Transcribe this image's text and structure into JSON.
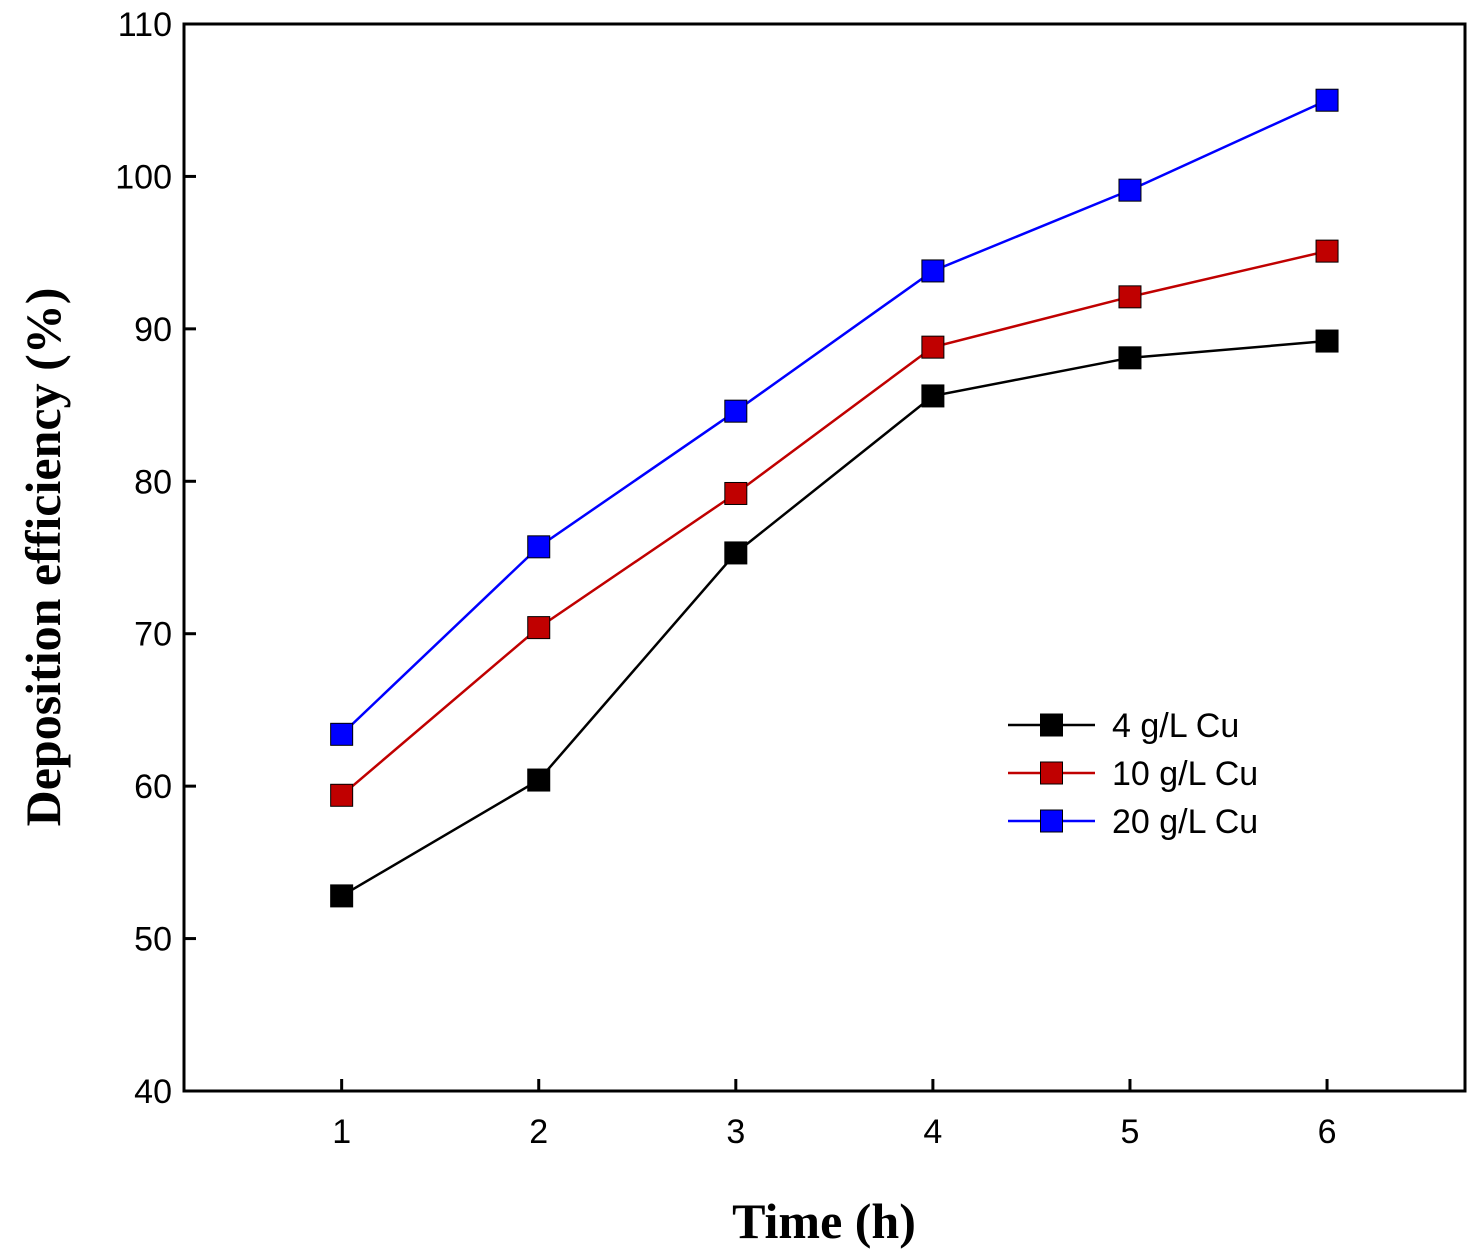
{
  "chart_data": {
    "type": "line",
    "title": "",
    "xlabel": "Time (h)",
    "ylabel": "Deposition efficiency (%)",
    "x": [
      1,
      2,
      3,
      4,
      5,
      6
    ],
    "xlim": [
      0.2,
      6.7
    ],
    "ylim": [
      40,
      110
    ],
    "xticks": [
      1,
      2,
      3,
      4,
      5,
      6
    ],
    "yticks": [
      40,
      50,
      60,
      70,
      80,
      90,
      100,
      110
    ],
    "grid": false,
    "legend_position": "center-right",
    "series": [
      {
        "name": "4 g/L Cu",
        "color": "#000000",
        "marker": "square",
        "values": [
          52.8,
          60.4,
          75.3,
          85.6,
          88.1,
          89.2
        ]
      },
      {
        "name": "10 g/L Cu",
        "color": "#c00000",
        "marker": "square",
        "values": [
          59.4,
          70.4,
          79.2,
          88.8,
          92.1,
          95.1
        ]
      },
      {
        "name": "20 g/L Cu",
        "color": "#0000ff",
        "marker": "square",
        "values": [
          63.4,
          75.7,
          84.6,
          93.8,
          99.1,
          105.0
        ]
      }
    ]
  }
}
